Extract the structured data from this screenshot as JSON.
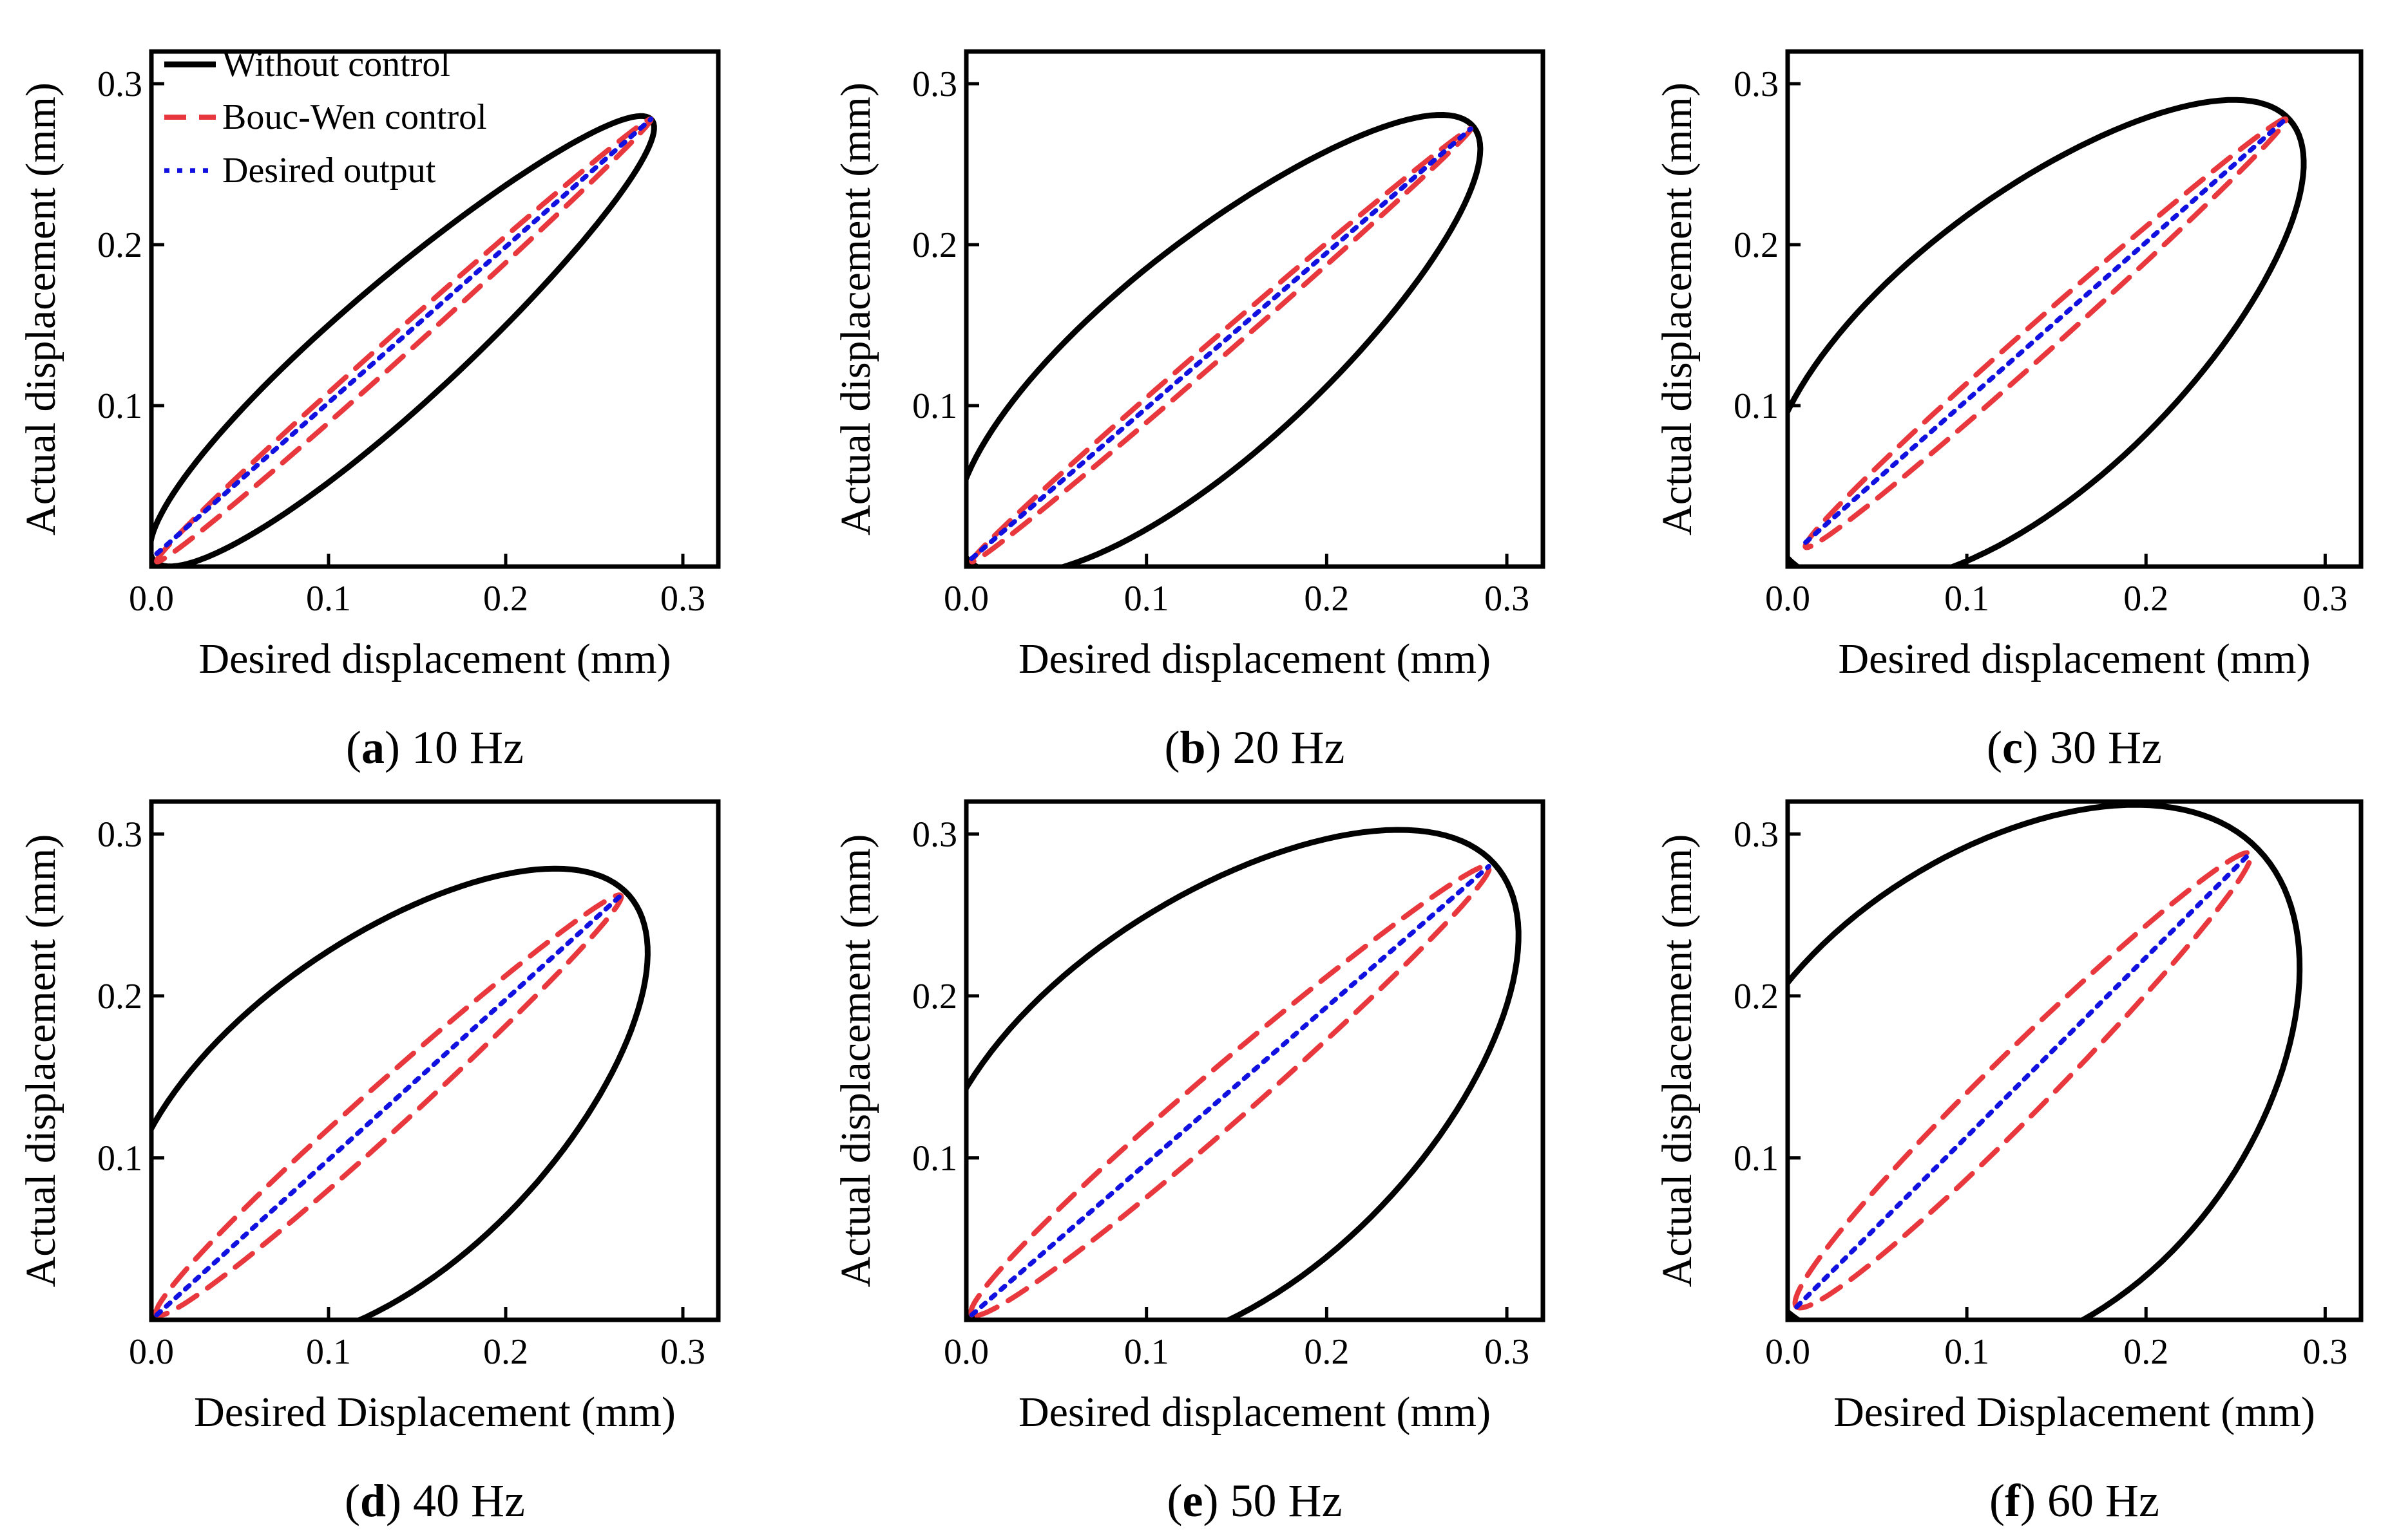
{
  "figure": {
    "legend": [
      {
        "label": "Without control",
        "color": "#000000",
        "dash": "solid"
      },
      {
        "label": "Bouc-Wen control",
        "color": "#e8383d",
        "dash": "dashed"
      },
      {
        "label": "Desired output",
        "color": "#1010e0",
        "dash": "dotted"
      }
    ]
  },
  "chart_data": [
    {
      "type": "line",
      "panel": "a",
      "caption_letter": "a",
      "caption_text": " 10 Hz",
      "xlabel": "Desired displacement (mm)",
      "ylabel": "Actual displacement (mm)",
      "xlim": [
        0,
        0.32
      ],
      "ylim": [
        0,
        0.32
      ],
      "xticks": [
        "0.0",
        "0.1",
        "0.2",
        "0.3"
      ],
      "yticks": [
        "0.1",
        "0.2",
        "0.3"
      ],
      "series": [
        {
          "name": "Without control",
          "loop": {
            "peak": [
              0.282,
              0.278
            ],
            "width": 0.032
          }
        },
        {
          "name": "Bouc-Wen control",
          "loop": {
            "start": [
              0.003,
              0.003
            ],
            "end": [
              0.282,
              0.278
            ],
            "width": 0.006
          }
        },
        {
          "name": "Desired output",
          "line": {
            "start": [
              0.003,
              0.008
            ],
            "end": [
              0.282,
              0.278
            ]
          }
        }
      ]
    },
    {
      "type": "line",
      "panel": "b",
      "caption_letter": "b",
      "caption_text": " 20 Hz",
      "xlabel": "Desired displacement (mm)",
      "ylabel": "Actual displacement (mm)",
      "xlim": [
        0,
        0.32
      ],
      "ylim": [
        0,
        0.32
      ],
      "xticks": [
        "0.0",
        "0.1",
        "0.2",
        "0.3"
      ],
      "yticks": [
        "0.1",
        "0.2",
        "0.3"
      ],
      "series": [
        {
          "name": "Without control",
          "loop": {
            "peak": [
              0.28,
              0.275
            ],
            "width": 0.055
          }
        },
        {
          "name": "Bouc-Wen control",
          "loop": {
            "start": [
              0.003,
              0.003
            ],
            "end": [
              0.28,
              0.272
            ],
            "width": 0.005
          }
        },
        {
          "name": "Desired output",
          "line": {
            "start": [
              0.003,
              0.005
            ],
            "end": [
              0.28,
              0.272
            ]
          }
        }
      ]
    },
    {
      "type": "line",
      "panel": "c",
      "caption_letter": "c",
      "caption_text": " 30 Hz",
      "xlabel": "Desired displacement (mm)",
      "ylabel": "Actual displacement (mm)",
      "xlim": [
        0,
        0.32
      ],
      "ylim": [
        0,
        0.32
      ],
      "xticks": [
        "0.0",
        "0.1",
        "0.2",
        "0.3"
      ],
      "yticks": [
        "0.1",
        "0.2",
        "0.3"
      ],
      "series": [
        {
          "name": "Without control",
          "loop": {
            "peak": [
              0.278,
              0.28
            ],
            "width": 0.075
          }
        },
        {
          "name": "Bouc-Wen control",
          "loop": {
            "start": [
              0.01,
              0.012
            ],
            "end": [
              0.278,
              0.278
            ],
            "width": 0.008
          }
        },
        {
          "name": "Desired output",
          "line": {
            "start": [
              0.01,
              0.015
            ],
            "end": [
              0.278,
              0.278
            ]
          }
        }
      ]
    },
    {
      "type": "line",
      "panel": "d",
      "caption_letter": "d",
      "caption_text": " 40 Hz",
      "xlabel": "Desired Displacement (mm)",
      "ylabel": "Actual displacement (mm)",
      "xlim": [
        0,
        0.32
      ],
      "ylim": [
        0,
        0.32
      ],
      "xticks": [
        "0.0",
        "0.1",
        "0.2",
        "0.3"
      ],
      "yticks": [
        "0.1",
        "0.2",
        "0.3"
      ],
      "series": [
        {
          "name": "Without control",
          "loop": {
            "peak": [
              0.267,
              0.265
            ],
            "width": 0.085
          }
        },
        {
          "name": "Bouc-Wen control",
          "loop": {
            "start": [
              0.003,
              0.003
            ],
            "end": [
              0.265,
              0.262
            ],
            "width": 0.012
          }
        },
        {
          "name": "Desired output",
          "line": {
            "start": [
              0.003,
              0.003
            ],
            "end": [
              0.265,
              0.262
            ]
          }
        }
      ]
    },
    {
      "type": "line",
      "panel": "e",
      "caption_letter": "e",
      "caption_text": " 50 Hz",
      "xlabel": "Desired displacement (mm)",
      "ylabel": "Actual displacement (mm)",
      "xlim": [
        0,
        0.32
      ],
      "ylim": [
        0,
        0.32
      ],
      "xticks": [
        "0.0",
        "0.1",
        "0.2",
        "0.3"
      ],
      "yticks": [
        "0.1",
        "0.2",
        "0.3"
      ],
      "series": [
        {
          "name": "Without control",
          "loop": {
            "peak": [
              0.29,
              0.285
            ],
            "width": 0.1
          }
        },
        {
          "name": "Bouc-Wen control",
          "loop": {
            "start": [
              0.003,
              0.003
            ],
            "end": [
              0.29,
              0.28
            ],
            "width": 0.014
          }
        },
        {
          "name": "Desired output",
          "line": {
            "start": [
              0.003,
              0.003
            ],
            "end": [
              0.29,
              0.28
            ]
          }
        }
      ]
    },
    {
      "type": "line",
      "panel": "f",
      "caption_letter": "f",
      "caption_text": " 60 Hz",
      "xlabel": "Desired Displacement (mm)",
      "ylabel": "Actual displacement (mm)",
      "xlim": [
        0,
        0.32
      ],
      "ylim": [
        0,
        0.32
      ],
      "xticks": [
        "0.0",
        "0.1",
        "0.2",
        "0.3"
      ],
      "yticks": [
        "0.1",
        "0.2",
        "0.3"
      ],
      "series": [
        {
          "name": "Without control",
          "loop": {
            "peak": [
              0.255,
              0.298
            ],
            "width": 0.12
          }
        },
        {
          "name": "Bouc-Wen control",
          "loop": {
            "start": [
              0.005,
              0.008
            ],
            "end": [
              0.258,
              0.288
            ],
            "width": 0.016
          }
        },
        {
          "name": "Desired output",
          "line": {
            "start": [
              0.005,
              0.008
            ],
            "end": [
              0.258,
              0.288
            ]
          }
        }
      ]
    }
  ]
}
